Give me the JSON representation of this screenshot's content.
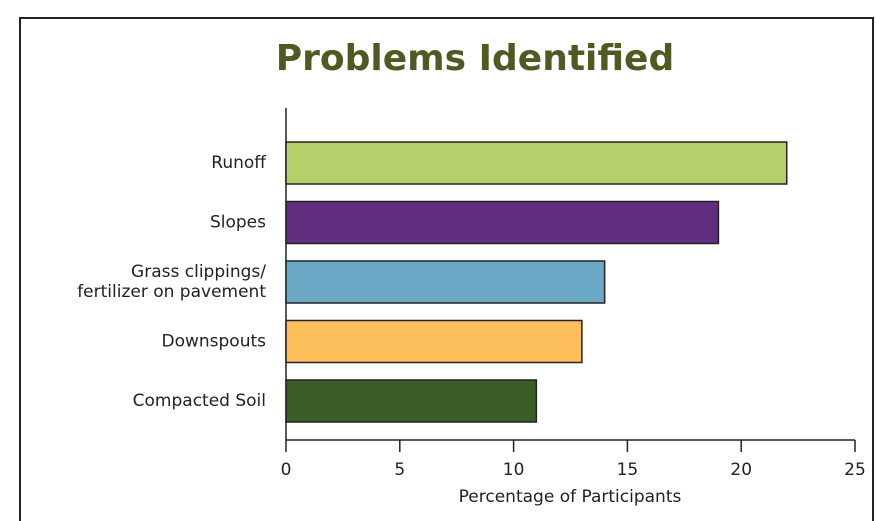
{
  "chart_data": {
    "type": "hbar",
    "title": "Problems Identified",
    "categories": [
      "Runoff",
      "Slopes",
      "Grass clippings/\nfertilizer on pavement",
      "Downspouts",
      "Compacted Soil"
    ],
    "values": [
      22,
      19,
      14,
      13,
      11
    ],
    "colors": [
      "#b5cf6b",
      "#612d7f",
      "#6aa8c6",
      "#fdbf5c",
      "#3b5e29"
    ],
    "xlabel": "Percentage of Participants",
    "xlim": [
      0,
      25
    ],
    "xticks": [
      0,
      5,
      10,
      15,
      20,
      25
    ],
    "grid": false
  }
}
